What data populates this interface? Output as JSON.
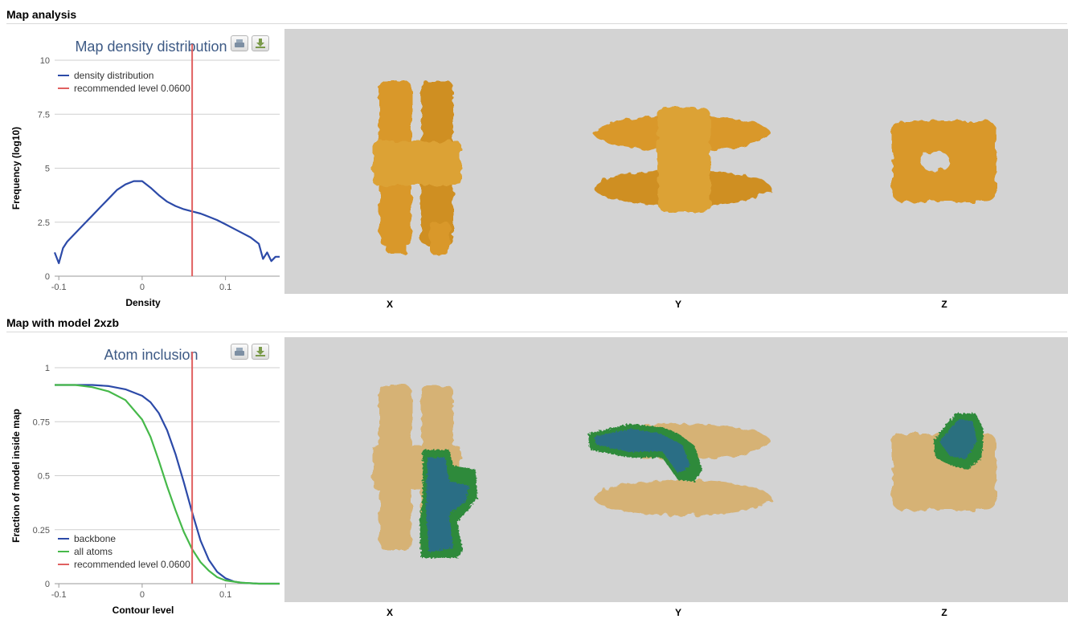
{
  "sections": {
    "map_analysis": "Map analysis",
    "map_with_model": "Map with model 2xzb"
  },
  "views": {
    "x": "X",
    "y": "Y",
    "z": "Z"
  },
  "icons": {
    "print": "print-icon",
    "download": "download-icon"
  },
  "colors": {
    "density": "#2c4aa8",
    "backbone": "#2c4aa8",
    "all_atoms": "#46b94a",
    "recommended": "#e06060",
    "panel_bg": "#d3d3d3",
    "density_map": "#d9982a",
    "model": "#2f8a3a"
  },
  "chart_data": [
    {
      "type": "line",
      "title": "Map density distribution",
      "xlabel": "Density",
      "ylabel": "Frequency (log10)",
      "xlim": [
        -0.105,
        0.165
      ],
      "ylim": [
        0,
        10
      ],
      "x_ticks": [
        -0.1,
        0,
        0.1
      ],
      "x_tick_labels": [
        "-0.1",
        "0",
        "0.1"
      ],
      "y_ticks": [
        0,
        2.5,
        5,
        7.5,
        10
      ],
      "y_tick_labels": [
        "0",
        "2.5",
        "5",
        "7.5",
        "10"
      ],
      "grid": true,
      "legend_position": "top-left",
      "series": [
        {
          "name": "density distribution",
          "x": [
            -0.105,
            -0.1,
            -0.095,
            -0.09,
            -0.08,
            -0.07,
            -0.06,
            -0.05,
            -0.04,
            -0.03,
            -0.02,
            -0.01,
            0.0,
            0.01,
            0.02,
            0.03,
            0.04,
            0.05,
            0.06,
            0.07,
            0.08,
            0.09,
            0.1,
            0.11,
            0.12,
            0.13,
            0.14,
            0.145,
            0.15,
            0.155,
            0.16,
            0.165
          ],
          "y": [
            1.1,
            0.6,
            1.3,
            1.6,
            2.0,
            2.4,
            2.8,
            3.2,
            3.6,
            4.0,
            4.25,
            4.4,
            4.4,
            4.1,
            3.75,
            3.45,
            3.25,
            3.1,
            3.0,
            2.9,
            2.75,
            2.6,
            2.4,
            2.2,
            2.0,
            1.8,
            1.5,
            0.8,
            1.1,
            0.7,
            0.9,
            0.9
          ]
        }
      ],
      "recommended_level": {
        "name": "recommended level 0.0600",
        "x": 0.06
      }
    },
    {
      "type": "line",
      "title": "Atom inclusion",
      "xlabel": "Contour level",
      "ylabel": "Fraction of model inside map",
      "xlim": [
        -0.105,
        0.165
      ],
      "ylim": [
        0,
        1
      ],
      "x_ticks": [
        -0.1,
        0,
        0.1
      ],
      "x_tick_labels": [
        "-0.1",
        "0",
        "0.1"
      ],
      "y_ticks": [
        0,
        0.25,
        0.5,
        0.75,
        1
      ],
      "y_tick_labels": [
        "0",
        "0.25",
        "0.5",
        "0.75",
        "1"
      ],
      "grid": true,
      "legend_position": "bottom-left",
      "series": [
        {
          "name": "backbone",
          "x": [
            -0.105,
            -0.06,
            -0.04,
            -0.02,
            0.0,
            0.01,
            0.02,
            0.03,
            0.04,
            0.05,
            0.06,
            0.07,
            0.08,
            0.09,
            0.1,
            0.11,
            0.12,
            0.14,
            0.165
          ],
          "y": [
            0.92,
            0.92,
            0.915,
            0.9,
            0.87,
            0.84,
            0.79,
            0.71,
            0.6,
            0.47,
            0.33,
            0.2,
            0.11,
            0.055,
            0.025,
            0.01,
            0.004,
            0.0,
            0.0
          ]
        },
        {
          "name": "all atoms",
          "x": [
            -0.105,
            -0.08,
            -0.06,
            -0.04,
            -0.02,
            0.0,
            0.01,
            0.02,
            0.03,
            0.04,
            0.05,
            0.06,
            0.07,
            0.08,
            0.09,
            0.1,
            0.12,
            0.14,
            0.165
          ],
          "y": [
            0.92,
            0.92,
            0.91,
            0.89,
            0.85,
            0.76,
            0.68,
            0.57,
            0.45,
            0.34,
            0.24,
            0.16,
            0.1,
            0.06,
            0.03,
            0.015,
            0.004,
            0.0,
            0.0
          ]
        }
      ],
      "recommended_level": {
        "name": "recommended level 0.0600",
        "x": 0.06
      }
    }
  ]
}
